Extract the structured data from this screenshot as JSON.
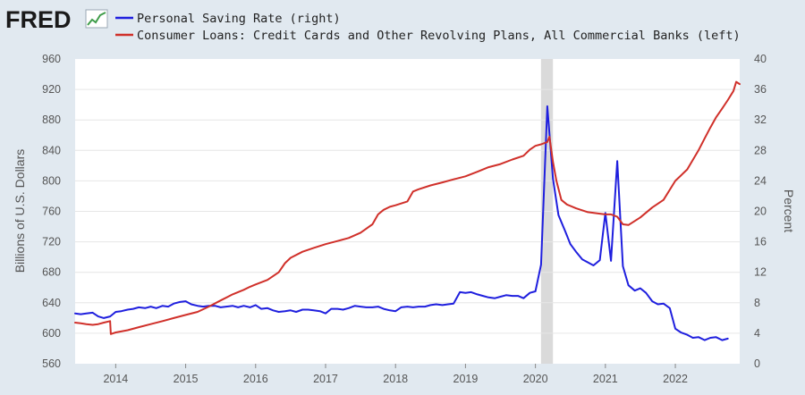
{
  "logo": {
    "text": "FRED"
  },
  "chart_data": {
    "type": "line",
    "title": "",
    "xlim": [
      2013.42,
      2022.92
    ],
    "x_ticks": [
      "2014",
      "2015",
      "2016",
      "2017",
      "2018",
      "2019",
      "2020",
      "2021",
      "2022"
    ],
    "left_axis": {
      "label": "Billions of U.S. Dollars",
      "ylim": [
        560,
        960
      ],
      "ticks": [
        "560",
        "600",
        "640",
        "680",
        "720",
        "760",
        "800",
        "840",
        "880",
        "920",
        "960"
      ]
    },
    "right_axis": {
      "label": "Percent",
      "ylim": [
        0,
        40
      ],
      "ticks": [
        "0",
        "4",
        "8",
        "12",
        "16",
        "20",
        "24",
        "28",
        "32",
        "36",
        "40"
      ]
    },
    "recession": {
      "start": 2020.08,
      "end": 2020.25
    },
    "grid": "horizontal",
    "legend_position": "top-left",
    "series": [
      {
        "name": "Personal Saving Rate (right)",
        "axis": "right",
        "color": "#1f1fde",
        "x": [
          2013.42,
          2013.5,
          2013.58,
          2013.67,
          2013.75,
          2013.83,
          2013.92,
          2014.0,
          2014.08,
          2014.17,
          2014.25,
          2014.33,
          2014.42,
          2014.5,
          2014.58,
          2014.67,
          2014.75,
          2014.83,
          2014.92,
          2015.0,
          2015.08,
          2015.17,
          2015.25,
          2015.33,
          2015.42,
          2015.5,
          2015.58,
          2015.67,
          2015.75,
          2015.83,
          2015.92,
          2016.0,
          2016.08,
          2016.17,
          2016.25,
          2016.33,
          2016.42,
          2016.5,
          2016.58,
          2016.67,
          2016.75,
          2016.83,
          2016.92,
          2017.0,
          2017.08,
          2017.17,
          2017.25,
          2017.33,
          2017.42,
          2017.5,
          2017.58,
          2017.67,
          2017.75,
          2017.83,
          2017.92,
          2018.0,
          2018.08,
          2018.17,
          2018.25,
          2018.33,
          2018.42,
          2018.5,
          2018.58,
          2018.67,
          2018.75,
          2018.83,
          2018.92,
          2019.0,
          2019.08,
          2019.17,
          2019.25,
          2019.33,
          2019.42,
          2019.5,
          2019.58,
          2019.67,
          2019.75,
          2019.83,
          2019.92,
          2020.0,
          2020.08,
          2020.17,
          2020.25,
          2020.33,
          2020.42,
          2020.5,
          2020.58,
          2020.67,
          2020.75,
          2020.83,
          2020.92,
          2021.0,
          2021.08,
          2021.17,
          2021.25,
          2021.33,
          2021.42,
          2021.5,
          2021.58,
          2021.67,
          2021.75,
          2021.83,
          2021.92,
          2022.0,
          2022.08,
          2022.17,
          2022.25,
          2022.33,
          2022.42,
          2022.5,
          2022.58,
          2022.67,
          2022.75
        ],
        "values": [
          6.6,
          6.5,
          6.6,
          6.7,
          6.2,
          6.0,
          6.2,
          6.8,
          6.9,
          7.1,
          7.2,
          7.4,
          7.3,
          7.5,
          7.3,
          7.6,
          7.5,
          7.9,
          8.1,
          8.2,
          7.8,
          7.6,
          7.5,
          7.6,
          7.6,
          7.4,
          7.5,
          7.6,
          7.4,
          7.6,
          7.4,
          7.7,
          7.2,
          7.3,
          7.0,
          6.8,
          6.9,
          7.0,
          6.8,
          7.1,
          7.1,
          7.0,
          6.9,
          6.6,
          7.2,
          7.2,
          7.1,
          7.3,
          7.6,
          7.5,
          7.4,
          7.4,
          7.5,
          7.2,
          7.0,
          6.9,
          7.4,
          7.5,
          7.4,
          7.5,
          7.5,
          7.7,
          7.8,
          7.7,
          7.8,
          7.9,
          9.4,
          9.3,
          9.4,
          9.1,
          8.9,
          8.7,
          8.6,
          8.8,
          9.0,
          8.9,
          8.9,
          8.6,
          9.3,
          9.5,
          13.0,
          33.8,
          24.3,
          19.5,
          17.5,
          15.7,
          14.7,
          13.7,
          13.3,
          12.9,
          13.6,
          19.8,
          13.5,
          26.6,
          12.8,
          10.3,
          9.6,
          9.9,
          9.3,
          8.2,
          7.8,
          7.9,
          7.3,
          4.6,
          4.1,
          3.8,
          3.4,
          3.5,
          3.1,
          3.4,
          3.5,
          3.1,
          3.3
        ]
      },
      {
        "name": "Consumer Loans: Credit Cards and Other Revolving Plans, All Commercial Banks (left)",
        "axis": "left",
        "color": "#d0302a",
        "x": [
          2013.42,
          2013.5,
          2013.58,
          2013.67,
          2013.75,
          2013.83,
          2013.92,
          2013.93,
          2014.0,
          2014.17,
          2014.33,
          2014.5,
          2014.67,
          2014.83,
          2015.0,
          2015.17,
          2015.33,
          2015.5,
          2015.67,
          2015.83,
          2015.92,
          2016.0,
          2016.17,
          2016.33,
          2016.42,
          2016.5,
          2016.67,
          2016.83,
          2017.0,
          2017.17,
          2017.33,
          2017.5,
          2017.67,
          2017.75,
          2017.83,
          2017.92,
          2018.0,
          2018.17,
          2018.25,
          2018.33,
          2018.5,
          2018.67,
          2018.83,
          2019.0,
          2019.17,
          2019.33,
          2019.5,
          2019.67,
          2019.83,
          2019.92,
          2020.0,
          2020.08,
          2020.17,
          2020.2,
          2020.25,
          2020.3,
          2020.37,
          2020.45,
          2020.58,
          2020.75,
          2020.92,
          2021.0,
          2021.08,
          2021.17,
          2021.25,
          2021.33,
          2021.5,
          2021.67,
          2021.83,
          2022.0,
          2022.17,
          2022.33,
          2022.42,
          2022.5,
          2022.58,
          2022.67,
          2022.75,
          2022.83,
          2022.87,
          2022.92
        ],
        "values": [
          614,
          613,
          612,
          611,
          612,
          614,
          616,
          599,
          601,
          604,
          608,
          612,
          616,
          620,
          624,
          628,
          635,
          643,
          651,
          657,
          661,
          664,
          670,
          680,
          692,
          699,
          707,
          712,
          717,
          721,
          725,
          732,
          743,
          756,
          762,
          766,
          768,
          773,
          786,
          789,
          794,
          798,
          802,
          806,
          812,
          818,
          822,
          828,
          833,
          841,
          846,
          848,
          851,
          858,
          825,
          800,
          775,
          769,
          764,
          759,
          757,
          756,
          756,
          753,
          743,
          742,
          752,
          765,
          775,
          800,
          815,
          840,
          856,
          870,
          883,
          895,
          906,
          918,
          930,
          927
        ]
      }
    ]
  }
}
